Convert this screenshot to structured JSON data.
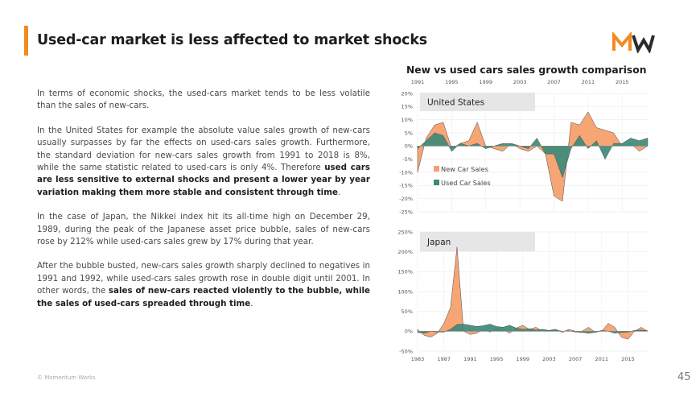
{
  "slide": {
    "title": "Used-car market is less affected to market shocks",
    "footer": "© Momentum Works",
    "page_number": "45"
  },
  "body": {
    "p1": "In terms of economic shocks, the used-cars market tends to be less volatile than the sales of new-cars.",
    "p2_normal": "In the United States for example the absolute value sales growth of new-cars usually surpasses by far the effects on used-cars sales growth. Furthermore, the standard deviation for new-cars sales growth from 1991 to 2018 is 8%, while the same statistic related to used-cars is only 4%. Therefore ",
    "p2_bold": "used cars are less sensitive to external shocks and present a lower year by year variation making them more stable and consistent through time",
    "p2_end": ".",
    "p3": "In the case of Japan, the Nikkei index hit its all-time high on December 29, 1989, during the peak of the Japanese asset price bubble, sales of new-cars rose by 212% while used-cars sales grew by 17% during that year.",
    "p4_normal": "After the bubble busted, new-cars sales growth sharply declined to negatives in 1991 and 1992, while used-cars sales growth rose in double digit until 2001. In other words, the ",
    "p4_bold": "sales of new-cars reacted violently to the bubble, while the sales of used-cars spreaded through time",
    "p4_end": "."
  },
  "colors": {
    "accent": "#f28b1e",
    "new_car": "#f5a06e",
    "used_car": "#3e8a78",
    "logo_dark": "#2b2b2b"
  },
  "icons": {
    "logo": "momentum-works-logo"
  },
  "chart_data": [
    {
      "type": "area",
      "title": "New vs used cars sales growth comparison",
      "panel_label": "United States",
      "x_ticks": [
        "1991",
        "1995",
        "1999",
        "2003",
        "2007",
        "2011",
        "2015"
      ],
      "y_ticks": [
        "20%",
        "15%",
        "10%",
        "5%",
        "0%",
        "-5%",
        "-10%",
        "-15%",
        "-20%",
        "-25%"
      ],
      "ylim": [
        -25,
        20
      ],
      "legend_position": "left",
      "x": [
        1991,
        1992,
        1993,
        1994,
        1995,
        1996,
        1997,
        1998,
        1999,
        2000,
        2001,
        2002,
        2003,
        2004,
        2005,
        2006,
        2007,
        2008,
        2009,
        2010,
        2011,
        2012,
        2013,
        2014,
        2015,
        2016,
        2017,
        2018
      ],
      "series": [
        {
          "name": "New Car Sales",
          "values": [
            -10,
            3,
            8,
            9,
            -1,
            1,
            2,
            9,
            0,
            -1,
            -2,
            1,
            -1,
            -2,
            0,
            -3,
            -19,
            -21,
            9,
            8,
            13,
            7,
            6,
            5,
            0,
            1,
            -2,
            0
          ]
        },
        {
          "name": "Used Car Sales",
          "values": [
            -1,
            2,
            5,
            4,
            -2,
            1,
            0,
            1,
            -1,
            0,
            1,
            1,
            0,
            -1,
            3,
            -3,
            -3,
            -12,
            -1,
            4,
            -1,
            2,
            -5,
            1,
            1,
            3,
            2,
            3
          ]
        }
      ]
    },
    {
      "type": "area",
      "panel_label": "Japan",
      "x_ticks": [
        "1983",
        "1987",
        "1991",
        "1995",
        "1999",
        "2003",
        "2007",
        "2011",
        "2015"
      ],
      "y_ticks": [
        "250%",
        "200%",
        "150%",
        "100%",
        "50%",
        "0%",
        "-50%"
      ],
      "ylim": [
        -50,
        250
      ],
      "x": [
        1983,
        1984,
        1985,
        1986,
        1987,
        1988,
        1989,
        1990,
        1991,
        1992,
        1993,
        1994,
        1995,
        1996,
        1997,
        1998,
        1999,
        2000,
        2001,
        2002,
        2003,
        2004,
        2005,
        2006,
        2007,
        2008,
        2009,
        2010,
        2011,
        2012,
        2013,
        2014,
        2015,
        2016,
        2017,
        2018
      ],
      "series": [
        {
          "name": "New Car Sales",
          "values": [
            5,
            -10,
            -15,
            -5,
            20,
            60,
            212,
            0,
            -8,
            -5,
            5,
            -2,
            8,
            5,
            -5,
            8,
            15,
            5,
            10,
            0,
            2,
            5,
            -3,
            5,
            0,
            0,
            10,
            -2,
            0,
            20,
            10,
            -15,
            -20,
            0,
            10,
            0
          ]
        },
        {
          "name": "Used Car Sales",
          "values": [
            -3,
            -5,
            0,
            -2,
            -2,
            5,
            17,
            18,
            15,
            12,
            14,
            18,
            12,
            10,
            15,
            8,
            5,
            6,
            3,
            5,
            2,
            3,
            0,
            1,
            -2,
            -3,
            -5,
            -3,
            2,
            0,
            -5,
            -3,
            -2,
            2,
            3,
            1
          ]
        }
      ]
    }
  ]
}
